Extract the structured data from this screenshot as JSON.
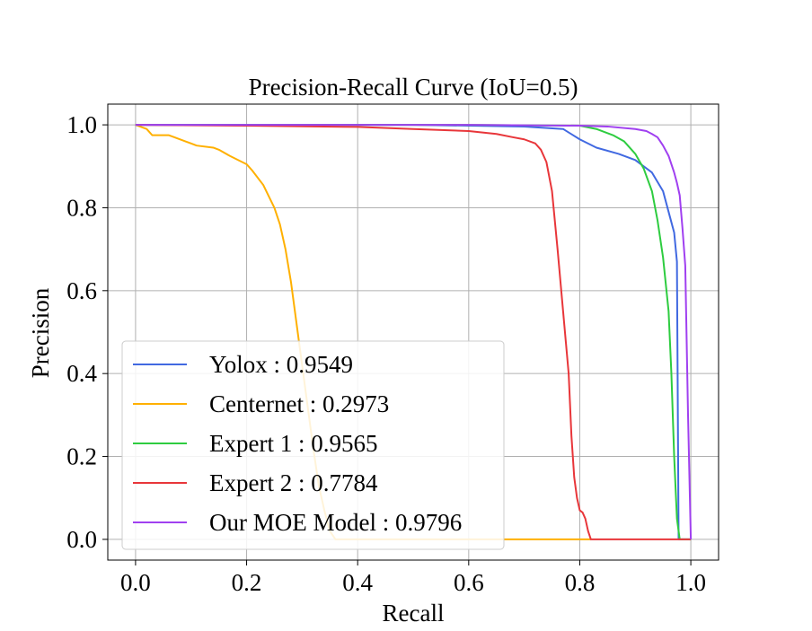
{
  "chart_data": {
    "type": "line",
    "title": "Precision-Recall Curve (IoU=0.5)",
    "xlabel": "Recall",
    "ylabel": "Precision",
    "xlim": [
      -0.05,
      1.05
    ],
    "ylim": [
      -0.05,
      1.05
    ],
    "xticks": [
      0.0,
      0.2,
      0.4,
      0.6,
      0.8,
      1.0
    ],
    "xtick_labels": [
      "0.0",
      "0.2",
      "0.4",
      "0.6",
      "0.8",
      "1.0"
    ],
    "yticks": [
      0.0,
      0.2,
      0.4,
      0.6,
      0.8,
      1.0
    ],
    "ytick_labels": [
      "0.0",
      "0.2",
      "0.4",
      "0.6",
      "0.8",
      "1.0"
    ],
    "grid": true,
    "legend_position": "lower-left",
    "series": [
      {
        "name": "Yolox : 0.9549",
        "color": "#4169e1",
        "x": [
          0.0,
          0.1,
          0.3,
          0.5,
          0.7,
          0.77,
          0.8,
          0.83,
          0.87,
          0.9,
          0.93,
          0.95,
          0.96,
          0.97,
          0.975,
          0.978,
          0.98,
          1.0
        ],
        "y": [
          1.0,
          1.0,
          1.0,
          1.0,
          0.996,
          0.99,
          0.965,
          0.945,
          0.93,
          0.915,
          0.885,
          0.84,
          0.79,
          0.74,
          0.67,
          0.0,
          0.0,
          0.0
        ]
      },
      {
        "name": "Centernet : 0.2973",
        "color": "#ffb000",
        "x": [
          0.0,
          0.01,
          0.02,
          0.03,
          0.04,
          0.06,
          0.07,
          0.09,
          0.1,
          0.11,
          0.14,
          0.15,
          0.17,
          0.2,
          0.21,
          0.23,
          0.25,
          0.26,
          0.27,
          0.28,
          0.29,
          0.3,
          0.31,
          0.32,
          0.33,
          0.34,
          0.35,
          0.36,
          0.4,
          0.6,
          0.8,
          0.82
        ],
        "y": [
          1.0,
          0.995,
          0.99,
          0.975,
          0.975,
          0.975,
          0.97,
          0.96,
          0.955,
          0.95,
          0.945,
          0.94,
          0.925,
          0.905,
          0.89,
          0.855,
          0.8,
          0.76,
          0.7,
          0.62,
          0.52,
          0.42,
          0.32,
          0.22,
          0.13,
          0.07,
          0.02,
          0.0,
          0.0,
          0.0,
          0.0,
          0.0
        ]
      },
      {
        "name": "Expert 1 : 0.9565",
        "color": "#2ecc40",
        "x": [
          0.0,
          0.2,
          0.4,
          0.6,
          0.8,
          0.83,
          0.86,
          0.88,
          0.9,
          0.915,
          0.93,
          0.94,
          0.95,
          0.96,
          0.965,
          0.97,
          0.975,
          0.98,
          1.0
        ],
        "y": [
          1.0,
          1.0,
          1.0,
          1.0,
          0.998,
          0.99,
          0.975,
          0.96,
          0.93,
          0.895,
          0.84,
          0.77,
          0.68,
          0.55,
          0.4,
          0.2,
          0.05,
          0.0,
          0.0
        ]
      },
      {
        "name": "Expert 2 : 0.7784",
        "color": "#e8363a",
        "x": [
          0.0,
          0.2,
          0.4,
          0.5,
          0.6,
          0.65,
          0.68,
          0.7,
          0.72,
          0.73,
          0.74,
          0.75,
          0.76,
          0.77,
          0.78,
          0.785,
          0.79,
          0.795,
          0.8,
          0.805,
          0.81,
          0.815,
          0.82,
          1.0
        ],
        "y": [
          1.0,
          0.998,
          0.995,
          0.99,
          0.985,
          0.978,
          0.97,
          0.965,
          0.955,
          0.94,
          0.91,
          0.84,
          0.7,
          0.55,
          0.4,
          0.25,
          0.15,
          0.1,
          0.07,
          0.065,
          0.05,
          0.02,
          0.0,
          0.0
        ]
      },
      {
        "name": "Our MOE Model : 0.9796",
        "color": "#a040f0",
        "x": [
          0.0,
          0.2,
          0.4,
          0.6,
          0.8,
          0.85,
          0.9,
          0.92,
          0.93,
          0.94,
          0.95,
          0.96,
          0.97,
          0.975,
          0.98,
          0.985,
          0.99,
          0.995,
          1.0,
          1.0
        ],
        "y": [
          1.0,
          1.0,
          1.0,
          1.0,
          0.998,
          0.996,
          0.99,
          0.985,
          0.978,
          0.97,
          0.95,
          0.925,
          0.885,
          0.86,
          0.83,
          0.75,
          0.66,
          0.3,
          0.0,
          0.0
        ]
      }
    ]
  }
}
